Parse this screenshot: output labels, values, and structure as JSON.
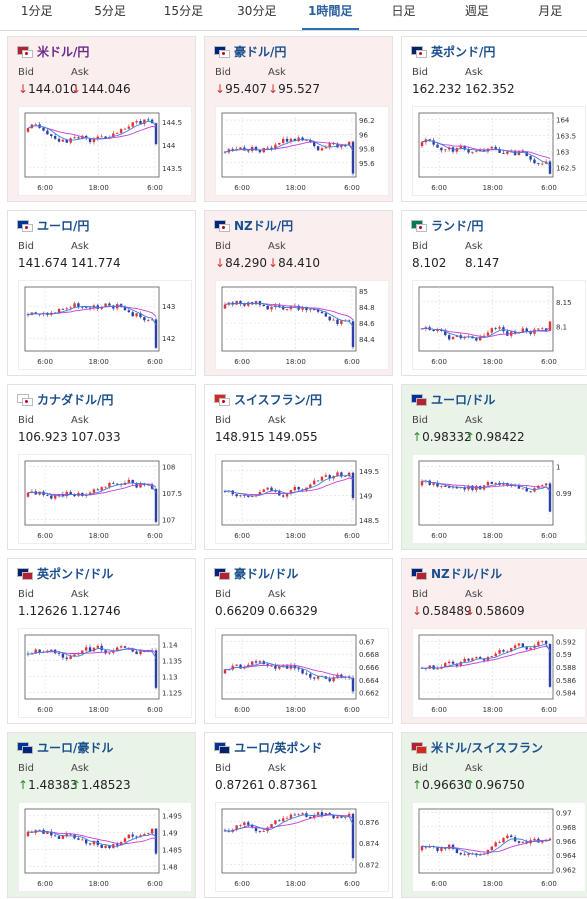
{
  "tabs": [
    "1分足",
    "5分足",
    "15分足",
    "30分足",
    "1時間足",
    "日足",
    "週足",
    "月足"
  ],
  "active_tab": 4,
  "labels": {
    "bid": "Bid",
    "ask": "Ask"
  },
  "cards": [
    {
      "pair": "米ドル/円",
      "bid": "144.010",
      "ask": "144.046",
      "dir": "down",
      "state": "down",
      "purple": true,
      "flag": "us-jp",
      "yticks": [
        "144.5",
        "144",
        "143.5"
      ],
      "ymin": 143.3,
      "ymax": 144.7,
      "last": 144.02,
      "times": [
        "6:00",
        "18:00",
        "6:00"
      ]
    },
    {
      "pair": "豪ドル/円",
      "bid": "95.407",
      "ask": "95.527",
      "dir": "down",
      "state": "down",
      "flag": "au-jp",
      "yticks": [
        "96.2",
        "96",
        "95.8",
        "95.6"
      ],
      "ymin": 95.4,
      "ymax": 96.3,
      "last": 95.45,
      "times": [
        "6:00",
        "18:00",
        "6:00"
      ]
    },
    {
      "pair": "英ポンド/円",
      "bid": "162.232",
      "ask": "162.352",
      "dir": "",
      "state": "neutral",
      "flag": "gb-jp",
      "yticks": [
        "164",
        "163.5",
        "163",
        "162.5"
      ],
      "ymin": 162.2,
      "ymax": 164.2,
      "last": 162.3,
      "times": [
        "6:00",
        "18:00",
        "6:00"
      ]
    },
    {
      "pair": "ユーロ/円",
      "bid": "141.674",
      "ask": "141.774",
      "dir": "",
      "state": "neutral",
      "flag": "eu-jp",
      "yticks": [
        "143",
        "142"
      ],
      "ymin": 141.6,
      "ymax": 143.6,
      "last": 141.7,
      "times": [
        "6:00",
        "18:00",
        "6:00"
      ]
    },
    {
      "pair": "NZドル/円",
      "bid": "84.290",
      "ask": "84.410",
      "dir": "down",
      "state": "down",
      "flag": "nz-jp",
      "yticks": [
        "85",
        "84.8",
        "84.6",
        "84.4"
      ],
      "ymin": 84.25,
      "ymax": 85.05,
      "last": 84.3,
      "times": [
        "6:00",
        "18:00",
        "6:00"
      ]
    },
    {
      "pair": "ランド/円",
      "bid": "8.102",
      "ask": "8.147",
      "dir": "",
      "state": "neutral",
      "flag": "za-jp",
      "yticks": [
        "8.15",
        "8.1"
      ],
      "ymin": 8.05,
      "ymax": 8.18,
      "last": 8.11,
      "times": [
        "6:00",
        "18:00",
        "6:00"
      ]
    },
    {
      "pair": "カナダドル/円",
      "bid": "106.923",
      "ask": "107.033",
      "dir": "",
      "state": "neutral",
      "flag": "ca-jp",
      "yticks": [
        "108",
        "107.5",
        "107"
      ],
      "ymin": 106.9,
      "ymax": 108.1,
      "last": 106.95,
      "times": [
        "6:00",
        "18:00",
        "6:00"
      ]
    },
    {
      "pair": "スイスフラン/円",
      "bid": "148.915",
      "ask": "149.055",
      "dir": "",
      "state": "neutral",
      "flag": "ch-jp",
      "yticks": [
        "149.5",
        "149",
        "148.5"
      ],
      "ymin": 148.4,
      "ymax": 149.7,
      "last": 148.95,
      "times": [
        "6:00",
        "18:00",
        "6:00"
      ]
    },
    {
      "pair": "ユーロ/ドル",
      "bid": "0.98332",
      "ask": "0.98422",
      "dir": "up",
      "state": "up",
      "flag": "eu-us",
      "yticks": [
        "1",
        "0.99"
      ],
      "ymin": 0.978,
      "ymax": 1.002,
      "last": 0.983,
      "times": [
        "6:00",
        "18:00",
        "6:00"
      ]
    },
    {
      "pair": "英ポンド/ドル",
      "bid": "1.12626",
      "ask": "1.12746",
      "dir": "",
      "state": "neutral",
      "flag": "gb-us",
      "yticks": [
        "1.14",
        "1.135",
        "1.13",
        "1.125"
      ],
      "ymin": 1.123,
      "ymax": 1.143,
      "last": 1.1265,
      "times": [
        "6:00",
        "18:00",
        "6:00"
      ]
    },
    {
      "pair": "豪ドル/ドル",
      "bid": "0.66209",
      "ask": "0.66329",
      "dir": "",
      "state": "neutral",
      "flag": "au-us",
      "yticks": [
        "0.67",
        "0.668",
        "0.666",
        "0.664",
        "0.662"
      ],
      "ymin": 0.661,
      "ymax": 0.671,
      "last": 0.6622,
      "times": [
        "6:00",
        "18:00",
        "6:00"
      ]
    },
    {
      "pair": "NZドル/ドル",
      "bid": "0.58489",
      "ask": "0.58609",
      "dir": "down",
      "state": "down",
      "flag": "nz-us",
      "yticks": [
        "0.592",
        "0.59",
        "0.588",
        "0.586",
        "0.584"
      ],
      "ymin": 0.583,
      "ymax": 0.593,
      "last": 0.5849,
      "times": [
        "6:00",
        "18:00",
        "6:00"
      ]
    },
    {
      "pair": "ユーロ/豪ドル",
      "bid": "1.48383",
      "ask": "1.48523",
      "dir": "up",
      "state": "up",
      "flag": "eu-au",
      "yticks": [
        "1.495",
        "1.49",
        "1.485",
        "1.48"
      ],
      "ymin": 1.478,
      "ymax": 1.497,
      "last": 1.4838,
      "times": [
        "6:00",
        "18:00",
        "6:00"
      ]
    },
    {
      "pair": "ユーロ/英ポンド",
      "bid": "0.87261",
      "ask": "0.87361",
      "dir": "",
      "state": "neutral",
      "flag": "eu-gb",
      "yticks": [
        "0.876",
        "0.874",
        "0.872"
      ],
      "ymin": 0.8712,
      "ymax": 0.8772,
      "last": 0.8726,
      "times": [
        "6:00",
        "18:00",
        "6:00"
      ]
    },
    {
      "pair": "米ドル/スイスフラン",
      "bid": "0.96630",
      "ask": "0.96750",
      "dir": "up",
      "state": "up",
      "flag": "us-ch",
      "yticks": [
        "0.97",
        "0.968",
        "0.966",
        "0.964",
        "0.962"
      ],
      "ymin": 0.9615,
      "ymax": 0.9705,
      "last": 0.9663,
      "times": [
        "6:00",
        "18:00",
        "6:00"
      ]
    }
  ]
}
